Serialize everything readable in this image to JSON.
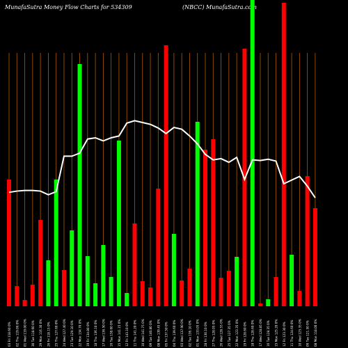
{
  "header": {
    "left": "MunafaSutra  Money Flow  Charts for 534309",
    "right": "(NBCC) MunafaSutra.com"
  },
  "colors": {
    "background": "#000000",
    "up_bar": "#00ff00",
    "down_bar": "#ff0000",
    "grid_line": "#b05a00",
    "price_line": "#ffffff",
    "text": "#ffffff"
  },
  "chart_data": {
    "type": "bar",
    "title": "MunafaSutra  Money Flow  Charts for 534309",
    "subtitle": "(NBCC) MunafaSutra.com",
    "bar_ylim": [
      0,
      440
    ],
    "bars": [
      {
        "label": "03 Fri 118.60 0%",
        "value": 182,
        "dir": "down"
      },
      {
        "label": "02 Thu 119.06 0%",
        "value": 29,
        "dir": "down"
      },
      {
        "label": "01 Wed 119.00 0%",
        "value": 9,
        "dir": "down"
      },
      {
        "label": "30 Tue 118.60 0%",
        "value": 31,
        "dir": "down"
      },
      {
        "label": "29 Mon 116.30 0%",
        "value": 124,
        "dir": "down"
      },
      {
        "label": "26 Fri 118.15 0%",
        "value": 66,
        "dir": "up"
      },
      {
        "label": "25 Thu 127.60 0%",
        "value": 182,
        "dir": "up"
      },
      {
        "label": "24 Wed 127.40 0%",
        "value": 52,
        "dir": "down"
      },
      {
        "label": "23 Tue 129.10 0%",
        "value": 109,
        "dir": "up"
      },
      {
        "label": "22 Mon 134.70 0%",
        "value": 348,
        "dir": "up"
      },
      {
        "label": "19 Fri 134.80 0%",
        "value": 72,
        "dir": "up"
      },
      {
        "label": "18 Thu 136.10 0%",
        "value": 33,
        "dir": "up"
      },
      {
        "label": "17 Wed 136.50 0%",
        "value": 88,
        "dir": "up"
      },
      {
        "label": "16 Tue 138.60 0%",
        "value": 42,
        "dir": "up"
      },
      {
        "label": "15 Mon 141.15 0%",
        "value": 238,
        "dir": "up"
      },
      {
        "label": "12 Fri 143.10 0%",
        "value": 19,
        "dir": "up"
      },
      {
        "label": "11 Thu 141.20 0%",
        "value": 119,
        "dir": "down"
      },
      {
        "label": "10 Wed 141.75 0%",
        "value": 36,
        "dir": "down"
      },
      {
        "label": "09 Tue 140.80 0%",
        "value": 27,
        "dir": "down"
      },
      {
        "label": "08 Mon 139.45 0%",
        "value": 169,
        "dir": "down"
      },
      {
        "label": "05 Fri 137.50 0%",
        "value": 375,
        "dir": "down"
      },
      {
        "label": "04 Thu 139.60 0%",
        "value": 104,
        "dir": "up"
      },
      {
        "label": "03 Wed 137.90 0%",
        "value": 37,
        "dir": "down"
      },
      {
        "label": "02 Tue 136.10 0%",
        "value": 54,
        "dir": "down"
      },
      {
        "label": "01 Mon 133.05 0%",
        "value": 265,
        "dir": "up"
      },
      {
        "label": "28 Fri 130.10 0%",
        "value": 225,
        "dir": "down"
      },
      {
        "label": "27 Thu 128.05 0%",
        "value": 240,
        "dir": "down"
      },
      {
        "label": "26 Wed 128.55 0%",
        "value": 41,
        "dir": "down"
      },
      {
        "label": "25 Tue 127.35 0%",
        "value": 51,
        "dir": "down"
      },
      {
        "label": "22 Mon 123.35 0%",
        "value": 71,
        "dir": "up"
      },
      {
        "label": "19 Fri 128.60 0%",
        "value": 370,
        "dir": "down"
      },
      {
        "label": "18 Thu 128.60 0%",
        "value": 442,
        "dir": "up"
      },
      {
        "label": "17 Wed 128.85 0%",
        "value": 4,
        "dir": "down"
      },
      {
        "label": "16 Tue 128.35 0%",
        "value": 10,
        "dir": "up"
      },
      {
        "label": "15 Mon 125.20 0%",
        "value": 42,
        "dir": "down"
      },
      {
        "label": "12 Fri 123.30 0%",
        "value": 436,
        "dir": "down"
      },
      {
        "label": "11 Thu 124.60 0%",
        "value": 74,
        "dir": "up"
      },
      {
        "label": "10 Wed 125.35 0%",
        "value": 22,
        "dir": "down"
      },
      {
        "label": "09 Tue 121.50 0%",
        "value": 187,
        "dir": "down"
      },
      {
        "label": "08 Mon 118.00 0%",
        "value": 141,
        "dir": "down"
      }
    ],
    "price_line_ylim": [
      100,
      150
    ],
    "price_line": [
      118.6,
      118.8,
      118.9,
      118.9,
      118.8,
      118.2,
      118.7,
      124.5,
      124.5,
      125.0,
      127.3,
      127.5,
      127.0,
      127.5,
      127.8,
      129.9,
      130.3,
      130.0,
      129.7,
      129.1,
      128.2,
      129.2,
      128.9,
      127.8,
      126.5,
      124.8,
      123.9,
      124.1,
      123.5,
      124.3,
      120.7,
      123.9,
      123.8,
      124.0,
      123.7,
      120.0,
      120.6,
      121.2,
      119.6,
      117.7
    ]
  }
}
